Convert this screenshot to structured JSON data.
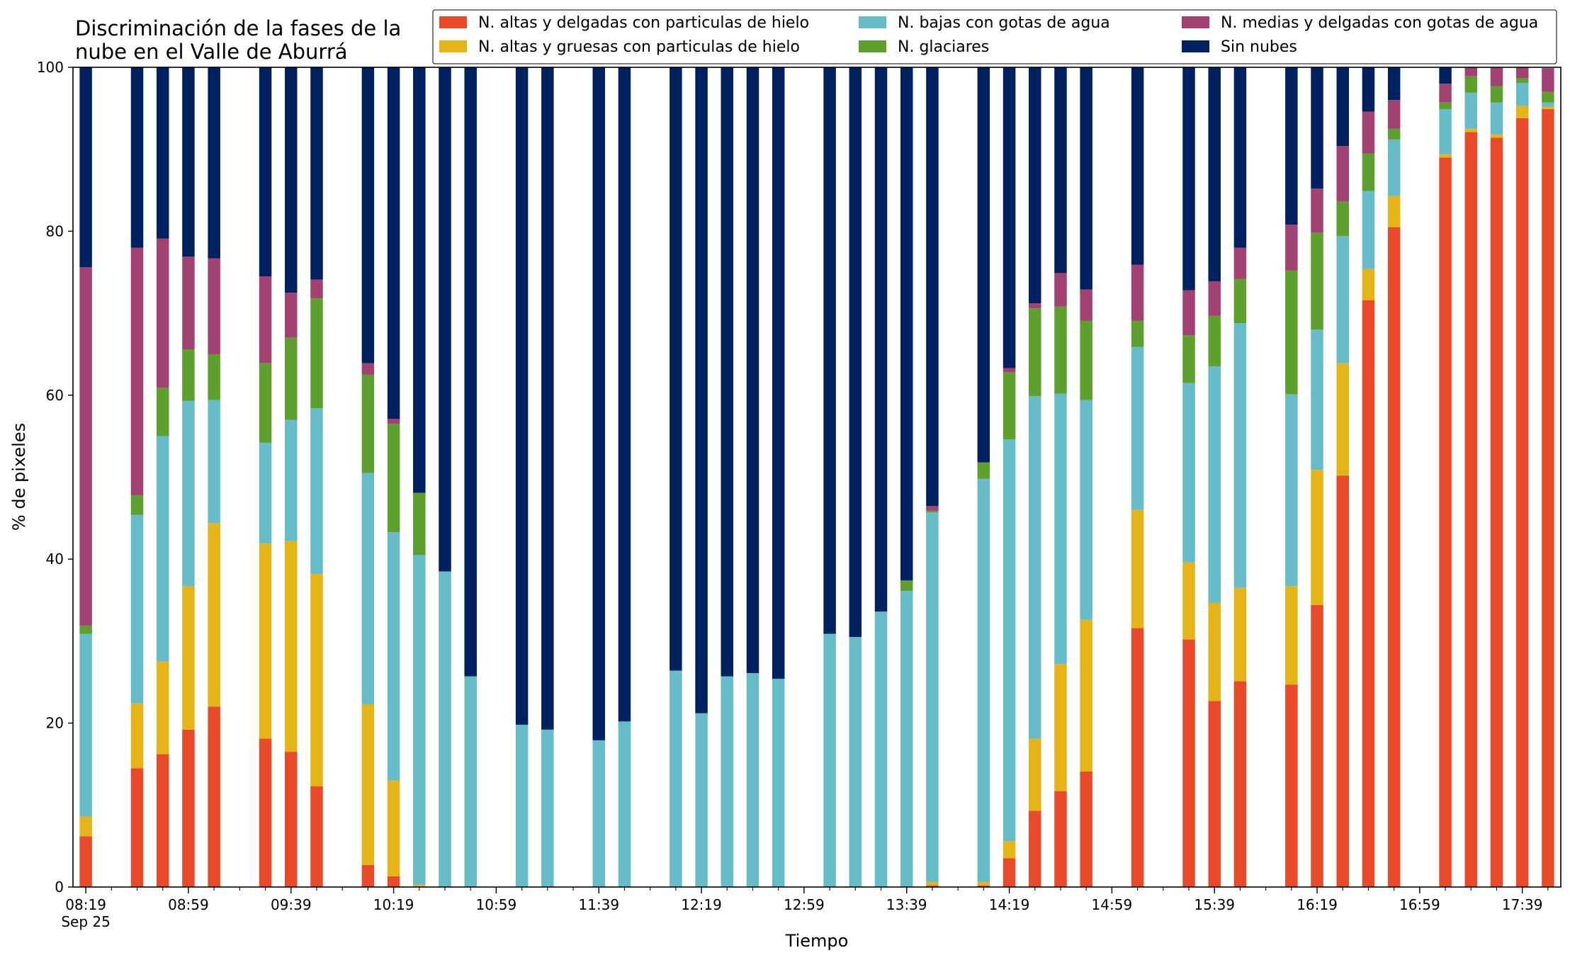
{
  "chart_data": {
    "type": "bar",
    "stacked": true,
    "title_lines": [
      "Discriminación de la fases de la",
      "nube en el Valle de Aburrá"
    ],
    "xlabel": "Tiempo",
    "ylabel": "% de pixeles",
    "ylim": [
      0,
      100
    ],
    "yticks": [
      0,
      20,
      40,
      60,
      80,
      100
    ],
    "xlim": [
      "08:14",
      "17:54"
    ],
    "xticks_major": [
      "08:19",
      "08:59",
      "09:39",
      "10:19",
      "10:59",
      "11:39",
      "12:19",
      "12:59",
      "13:39",
      "14:19",
      "14:59",
      "15:39",
      "16:19",
      "16:59",
      "17:39"
    ],
    "xtick_date_label": "Sep 25",
    "xticks_minor_interval_minutes": 10,
    "legend_position": "upper-right",
    "grid": false,
    "series_order": [
      "Sin nubes",
      "N. medias y delgadas con gotas de agua",
      "N. glaciares",
      "N. bajas con gotas de agua",
      "N. altas y gruesas con particulas de hielo",
      "N. altas y delgadas con particulas de hielo"
    ],
    "legend": [
      {
        "name": "N. altas y delgadas con particulas de hielo",
        "color": "#E84A2A"
      },
      {
        "name": "N. altas y gruesas con particulas de hielo",
        "color": "#E5B517"
      },
      {
        "name": "N. bajas con gotas de agua",
        "color": "#66BDC9"
      },
      {
        "name": "N. glaciares",
        "color": "#5DA02E"
      },
      {
        "name": "N. medias y delgadas con gotas de agua",
        "color": "#A24272"
      },
      {
        "name": "Sin nubes",
        "color": "#00215F"
      }
    ],
    "bars": [
      {
        "time": "08:19",
        "values": {
          "altas_delgadas": 6.2,
          "altas_gruesas": 2.4,
          "bajas": 22.3,
          "glaciares": 1.0,
          "medias": 43.7,
          "sin_nubes": 24.4
        }
      },
      {
        "time": "08:39",
        "values": {
          "altas_delgadas": 14.5,
          "altas_gruesas": 7.9,
          "bajas": 23.0,
          "glaciares": 2.4,
          "medias": 30.2,
          "sin_nubes": 22.0
        }
      },
      {
        "time": "08:49",
        "values": {
          "altas_delgadas": 16.2,
          "altas_gruesas": 11.3,
          "bajas": 27.5,
          "glaciares": 5.9,
          "medias": 18.2,
          "sin_nubes": 20.9
        }
      },
      {
        "time": "08:59",
        "values": {
          "altas_delgadas": 19.2,
          "altas_gruesas": 17.5,
          "bajas": 22.6,
          "glaciares": 6.3,
          "medias": 11.3,
          "sin_nubes": 23.1
        }
      },
      {
        "time": "09:09",
        "values": {
          "altas_delgadas": 22.0,
          "altas_gruesas": 22.4,
          "bajas": 15.0,
          "glaciares": 5.6,
          "medias": 11.7,
          "sin_nubes": 23.3
        }
      },
      {
        "time": "09:29",
        "values": {
          "altas_delgadas": 18.1,
          "altas_gruesas": 23.8,
          "bajas": 12.3,
          "glaciares": 9.7,
          "medias": 10.6,
          "sin_nubes": 25.5
        }
      },
      {
        "time": "09:39",
        "values": {
          "altas_delgadas": 16.5,
          "altas_gruesas": 25.7,
          "bajas": 14.8,
          "glaciares": 10.0,
          "medias": 5.5,
          "sin_nubes": 27.5
        }
      },
      {
        "time": "09:49",
        "values": {
          "altas_delgadas": 12.3,
          "altas_gruesas": 25.9,
          "bajas": 20.2,
          "glaciares": 13.4,
          "medias": 2.3,
          "sin_nubes": 25.9
        }
      },
      {
        "time": "10:09",
        "values": {
          "altas_delgadas": 2.7,
          "altas_gruesas": 19.6,
          "bajas": 28.2,
          "glaciares": 12.0,
          "medias": 1.4,
          "sin_nubes": 36.1
        }
      },
      {
        "time": "10:19",
        "values": {
          "altas_delgadas": 1.3,
          "altas_gruesas": 11.7,
          "bajas": 30.3,
          "glaciares": 13.2,
          "medias": 0.6,
          "sin_nubes": 42.9
        }
      },
      {
        "time": "10:29",
        "values": {
          "altas_delgadas": 0.0,
          "altas_gruesas": 0.3,
          "bajas": 40.2,
          "glaciares": 7.6,
          "medias": 0.0,
          "sin_nubes": 51.9
        }
      },
      {
        "time": "10:39",
        "values": {
          "altas_delgadas": 0.0,
          "altas_gruesas": 0.0,
          "bajas": 38.5,
          "glaciares": 0.0,
          "medias": 0.0,
          "sin_nubes": 61.5
        }
      },
      {
        "time": "10:49",
        "values": {
          "altas_delgadas": 0.0,
          "altas_gruesas": 0.0,
          "bajas": 25.7,
          "glaciares": 0.0,
          "medias": 0.0,
          "sin_nubes": 74.3
        }
      },
      {
        "time": "11:09",
        "values": {
          "altas_delgadas": 0.0,
          "altas_gruesas": 0.0,
          "bajas": 19.8,
          "glaciares": 0.0,
          "medias": 0.0,
          "sin_nubes": 80.2
        }
      },
      {
        "time": "11:19",
        "values": {
          "altas_delgadas": 0.0,
          "altas_gruesas": 0.0,
          "bajas": 19.2,
          "glaciares": 0.0,
          "medias": 0.0,
          "sin_nubes": 80.8
        }
      },
      {
        "time": "11:39",
        "values": {
          "altas_delgadas": 0.0,
          "altas_gruesas": 0.0,
          "bajas": 17.9,
          "glaciares": 0.0,
          "medias": 0.0,
          "sin_nubes": 82.1
        }
      },
      {
        "time": "11:49",
        "values": {
          "altas_delgadas": 0.0,
          "altas_gruesas": 0.0,
          "bajas": 20.2,
          "glaciares": 0.0,
          "medias": 0.0,
          "sin_nubes": 79.8
        }
      },
      {
        "time": "12:09",
        "values": {
          "altas_delgadas": 0.0,
          "altas_gruesas": 0.0,
          "bajas": 26.4,
          "glaciares": 0.0,
          "medias": 0.0,
          "sin_nubes": 73.6
        }
      },
      {
        "time": "12:19",
        "values": {
          "altas_delgadas": 0.0,
          "altas_gruesas": 0.0,
          "bajas": 21.2,
          "glaciares": 0.0,
          "medias": 0.0,
          "sin_nubes": 78.8
        }
      },
      {
        "time": "12:29",
        "values": {
          "altas_delgadas": 0.0,
          "altas_gruesas": 0.0,
          "bajas": 25.7,
          "glaciares": 0.0,
          "medias": 0.0,
          "sin_nubes": 74.3
        }
      },
      {
        "time": "12:39",
        "values": {
          "altas_delgadas": 0.0,
          "altas_gruesas": 0.0,
          "bajas": 26.1,
          "glaciares": 0.0,
          "medias": 0.0,
          "sin_nubes": 73.9
        }
      },
      {
        "time": "12:49",
        "values": {
          "altas_delgadas": 0.0,
          "altas_gruesas": 0.0,
          "bajas": 25.4,
          "glaciares": 0.0,
          "medias": 0.0,
          "sin_nubes": 74.6
        }
      },
      {
        "time": "13:09",
        "values": {
          "altas_delgadas": 0.0,
          "altas_gruesas": 0.0,
          "bajas": 30.9,
          "glaciares": 0.0,
          "medias": 0.0,
          "sin_nubes": 69.1
        }
      },
      {
        "time": "13:19",
        "values": {
          "altas_delgadas": 0.0,
          "altas_gruesas": 0.0,
          "bajas": 30.5,
          "glaciares": 0.0,
          "medias": 0.0,
          "sin_nubes": 69.5
        }
      },
      {
        "time": "13:29",
        "values": {
          "altas_delgadas": 0.0,
          "altas_gruesas": 0.0,
          "bajas": 33.6,
          "glaciares": 0.0,
          "medias": 0.0,
          "sin_nubes": 66.4
        }
      },
      {
        "time": "13:39",
        "values": {
          "altas_delgadas": 0.0,
          "altas_gruesas": 0.0,
          "bajas": 36.1,
          "glaciares": 1.3,
          "medias": 0.0,
          "sin_nubes": 62.6
        }
      },
      {
        "time": "13:49",
        "values": {
          "altas_delgadas": 0.2,
          "altas_gruesas": 0.4,
          "bajas": 45.1,
          "glaciares": 0.2,
          "medias": 0.6,
          "sin_nubes": 53.5
        }
      },
      {
        "time": "14:09",
        "values": {
          "altas_delgadas": 0.2,
          "altas_gruesas": 0.4,
          "bajas": 49.2,
          "glaciares": 2.0,
          "medias": 0.0,
          "sin_nubes": 48.2
        }
      },
      {
        "time": "14:19",
        "values": {
          "altas_delgadas": 3.5,
          "altas_gruesas": 2.1,
          "bajas": 49.0,
          "glaciares": 8.2,
          "medias": 0.5,
          "sin_nubes": 36.7
        }
      },
      {
        "time": "14:29",
        "values": {
          "altas_delgadas": 9.3,
          "altas_gruesas": 8.8,
          "bajas": 41.8,
          "glaciares": 10.7,
          "medias": 0.6,
          "sin_nubes": 28.8
        }
      },
      {
        "time": "14:39",
        "values": {
          "altas_delgadas": 11.7,
          "altas_gruesas": 15.5,
          "bajas": 33.0,
          "glaciares": 10.6,
          "medias": 4.1,
          "sin_nubes": 25.1
        }
      },
      {
        "time": "14:49",
        "values": {
          "altas_delgadas": 14.1,
          "altas_gruesas": 18.5,
          "bajas": 26.8,
          "glaciares": 9.7,
          "medias": 3.8,
          "sin_nubes": 27.1
        }
      },
      {
        "time": "15:09",
        "values": {
          "altas_delgadas": 31.6,
          "altas_gruesas": 14.4,
          "bajas": 19.9,
          "glaciares": 3.2,
          "medias": 6.8,
          "sin_nubes": 24.1
        }
      },
      {
        "time": "15:29",
        "values": {
          "altas_delgadas": 30.2,
          "altas_gruesas": 9.4,
          "bajas": 21.9,
          "glaciares": 5.8,
          "medias": 5.5,
          "sin_nubes": 27.2
        }
      },
      {
        "time": "15:39",
        "values": {
          "altas_delgadas": 22.7,
          "altas_gruesas": 12.0,
          "bajas": 28.8,
          "glaciares": 6.2,
          "medias": 4.2,
          "sin_nubes": 26.1
        }
      },
      {
        "time": "15:49",
        "values": {
          "altas_delgadas": 25.1,
          "altas_gruesas": 11.4,
          "bajas": 32.3,
          "glaciares": 5.4,
          "medias": 3.8,
          "sin_nubes": 22.0
        }
      },
      {
        "time": "16:09",
        "values": {
          "altas_delgadas": 24.7,
          "altas_gruesas": 12.0,
          "bajas": 23.4,
          "glaciares": 15.1,
          "medias": 5.6,
          "sin_nubes": 19.2
        }
      },
      {
        "time": "16:19",
        "values": {
          "altas_delgadas": 34.4,
          "altas_gruesas": 16.5,
          "bajas": 17.1,
          "glaciares": 11.8,
          "medias": 5.4,
          "sin_nubes": 14.8
        }
      },
      {
        "time": "16:29",
        "values": {
          "altas_delgadas": 50.2,
          "altas_gruesas": 13.7,
          "bajas": 15.5,
          "glaciares": 4.2,
          "medias": 6.8,
          "sin_nubes": 9.6
        }
      },
      {
        "time": "16:39",
        "values": {
          "altas_delgadas": 71.6,
          "altas_gruesas": 3.8,
          "bajas": 9.5,
          "glaciares": 4.6,
          "medias": 5.1,
          "sin_nubes": 5.4
        }
      },
      {
        "time": "16:49",
        "values": {
          "altas_delgadas": 80.5,
          "altas_gruesas": 3.8,
          "bajas": 6.9,
          "glaciares": 1.3,
          "medias": 3.5,
          "sin_nubes": 4.0
        }
      },
      {
        "time": "17:09",
        "values": {
          "altas_delgadas": 89.0,
          "altas_gruesas": 0.4,
          "bajas": 5.5,
          "glaciares": 0.8,
          "medias": 2.3,
          "sin_nubes": 2.0
        }
      },
      {
        "time": "17:19",
        "values": {
          "altas_delgadas": 92.1,
          "altas_gruesas": 0.4,
          "bajas": 4.4,
          "glaciares": 2.0,
          "medias": 1.1,
          "sin_nubes": 0.0
        }
      },
      {
        "time": "17:29",
        "values": {
          "altas_delgadas": 91.4,
          "altas_gruesas": 0.4,
          "bajas": 3.9,
          "glaciares": 2.0,
          "medias": 2.3,
          "sin_nubes": 0.0
        }
      },
      {
        "time": "17:39",
        "values": {
          "altas_delgadas": 93.8,
          "altas_gruesas": 1.5,
          "bajas": 2.8,
          "glaciares": 0.6,
          "medias": 1.3,
          "sin_nubes": 0.0
        }
      },
      {
        "time": "17:49",
        "values": {
          "altas_delgadas": 94.9,
          "altas_gruesas": 0.3,
          "bajas": 0.5,
          "glaciares": 1.3,
          "medias": 2.9,
          "sin_nubes": 0.0
        }
      }
    ],
    "series_keys": {
      "altas_delgadas": "N. altas y delgadas con particulas de hielo",
      "altas_gruesas": "N. altas y gruesas con particulas de hielo",
      "bajas": "N. bajas con gotas de agua",
      "glaciares": "N. glaciares",
      "medias": "N. medias y delgadas con gotas de agua",
      "sin_nubes": "Sin nubes"
    },
    "stack_order": [
      "altas_delgadas",
      "altas_gruesas",
      "bajas",
      "glaciares",
      "medias",
      "sin_nubes"
    ]
  }
}
